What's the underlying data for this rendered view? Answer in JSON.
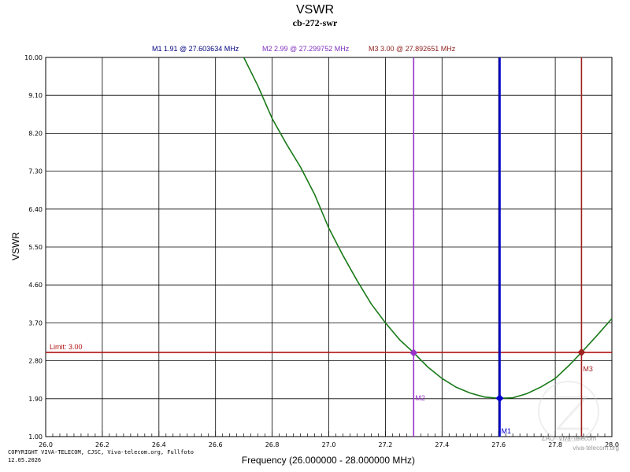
{
  "colors": {
    "curve": "#1a7a1a",
    "grid": "#000000",
    "m1": "#0000cc",
    "m2": "#9933cc",
    "m3": "#a02020",
    "limit": "#b01010",
    "header_m1": "#000080",
    "header_m2": "#8030c0",
    "header_m3": "#902020",
    "watermark": "#9a9a9a"
  },
  "chart_data": {
    "type": "line",
    "title": "VSWR",
    "subtitle": "cb-272-swr",
    "xlabel": "Frequency (26.000000 - 28.000000 MHz)",
    "ylabel": "VSWR",
    "xlim": [
      26.0,
      28.0
    ],
    "ylim": [
      1.0,
      10.0
    ],
    "x_ticks": [
      "26.0",
      "26.2",
      "26.4",
      "26.6",
      "26.8",
      "27.0",
      "27.2",
      "27.4",
      "27.6",
      "27.8",
      "28.0"
    ],
    "y_ticks": [
      "1.00",
      "1.90",
      "2.80",
      "3.70",
      "4.60",
      "5.50",
      "6.40",
      "7.30",
      "8.20",
      "9.10",
      "10.00"
    ],
    "grid": true,
    "limit": {
      "label": "Limit: 3.00",
      "value": 3.0
    },
    "markers": [
      {
        "name": "M1",
        "header": "M1   1.91 @ 27.603634 MHz",
        "x": 27.603634,
        "y": 1.91
      },
      {
        "name": "M2",
        "header": "M2   2.99 @ 27.299752 MHz",
        "x": 27.299752,
        "y": 2.99
      },
      {
        "name": "M3",
        "header": "M3   3.00 @ 27.892651 MHz",
        "x": 27.892651,
        "y": 3.0
      }
    ],
    "series": [
      {
        "x": [
          26.7,
          26.75,
          26.8,
          26.85,
          26.9,
          26.95,
          27.0,
          27.05,
          27.1,
          27.15,
          27.2,
          27.25,
          27.3,
          27.35,
          27.4,
          27.45,
          27.5,
          27.55,
          27.6,
          27.65,
          27.7,
          27.75,
          27.8,
          27.85,
          27.9,
          27.95,
          28.0
        ],
        "y": [
          10.0,
          9.32,
          8.55,
          7.95,
          7.4,
          6.75,
          5.95,
          5.3,
          4.7,
          4.15,
          3.7,
          3.3,
          2.99,
          2.65,
          2.38,
          2.17,
          2.03,
          1.94,
          1.91,
          1.92,
          2.02,
          2.18,
          2.38,
          2.7,
          3.05,
          3.42,
          3.8
        ]
      }
    ]
  },
  "footer": {
    "copyright": "COPYRIGHT VIVA-TELECOM, CJSC, Viva-telecom.org, Fullfoto",
    "date": "12.05.2026"
  },
  "watermark": {
    "line1": "ZAO \"Viva-Telecom\"",
    "line2": "viva-telecom.org"
  }
}
